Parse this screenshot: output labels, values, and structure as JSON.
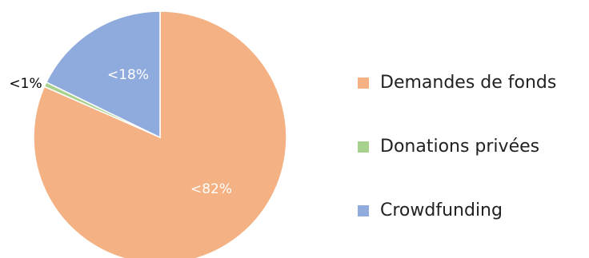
{
  "chart_data": {
    "type": "pie",
    "start_angle_deg": 0,
    "direction": "clockwise",
    "legend_position": "right",
    "slices": [
      {
        "name": "Demandes de fonds",
        "value": 81.6,
        "label": "<82%",
        "color": "#f4b183",
        "label_color": "#ffffff"
      },
      {
        "name": "Donations privées",
        "value": 0.6,
        "label": "<1%",
        "color": "#a9d18e",
        "label_color": "#000000"
      },
      {
        "name": "Crowdfunding",
        "value": 17.8,
        "label": "<18%",
        "color": "#8faadc",
        "label_color": "#ffffff"
      }
    ]
  }
}
